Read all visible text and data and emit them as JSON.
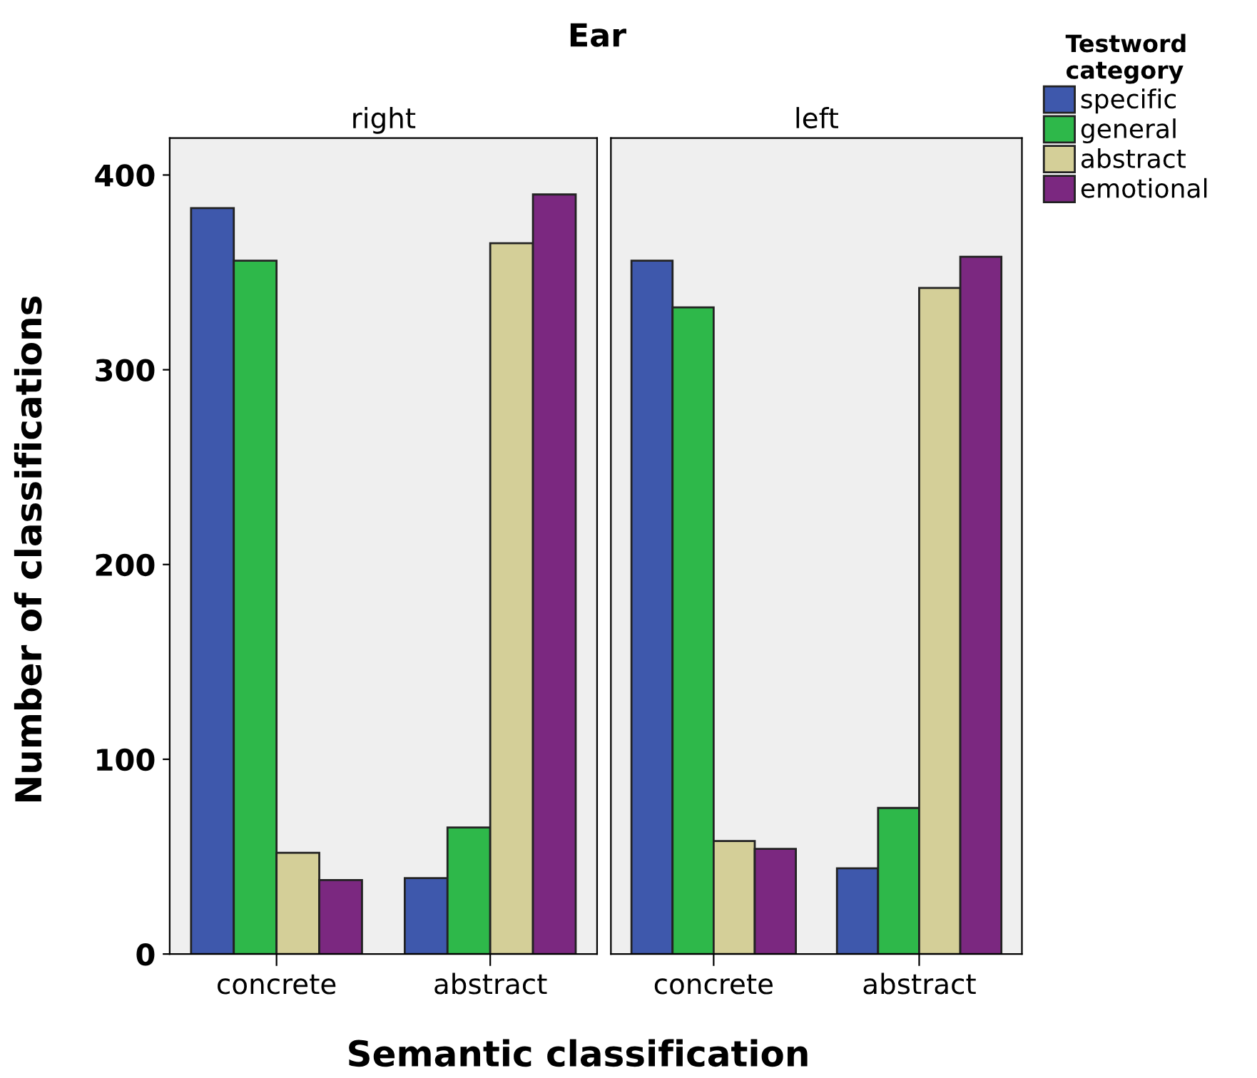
{
  "chart_data": [
    {
      "type": "bar",
      "title": "right",
      "annotations": [
        "Ear"
      ],
      "xlabel": "Semantic classification",
      "ylabel": "Number of classifications",
      "legend_title": "Testword category",
      "legend": "right",
      "categories": [
        "concrete",
        "abstract"
      ],
      "ylim": [
        0,
        419
      ],
      "yticks": [
        0,
        100,
        200,
        300,
        400
      ],
      "grid": false,
      "series": [
        {
          "name": "specific",
          "color": "#3e58ac",
          "values": [
            383,
            39
          ]
        },
        {
          "name": "general",
          "color": "#2eb84a",
          "values": [
            356,
            65
          ]
        },
        {
          "name": "abstract",
          "color": "#d4cf98",
          "values": [
            52,
            365
          ]
        },
        {
          "name": "emotional",
          "color": "#7b2880",
          "values": [
            38,
            390
          ]
        }
      ]
    },
    {
      "type": "bar",
      "title": "left",
      "tick_labels": "x",
      "categories": [
        "concrete",
        "abstract"
      ],
      "ylim": [
        0,
        419
      ],
      "yticks": [
        0,
        100,
        200,
        300,
        400
      ],
      "grid": false,
      "series": [
        {
          "color": "#3e58ac",
          "values": [
            356,
            44
          ]
        },
        {
          "color": "#2eb84a",
          "values": [
            332,
            75
          ]
        },
        {
          "color": "#d4cf98",
          "values": [
            58,
            342
          ]
        },
        {
          "color": "#7b2880",
          "values": [
            54,
            358
          ]
        }
      ]
    }
  ]
}
